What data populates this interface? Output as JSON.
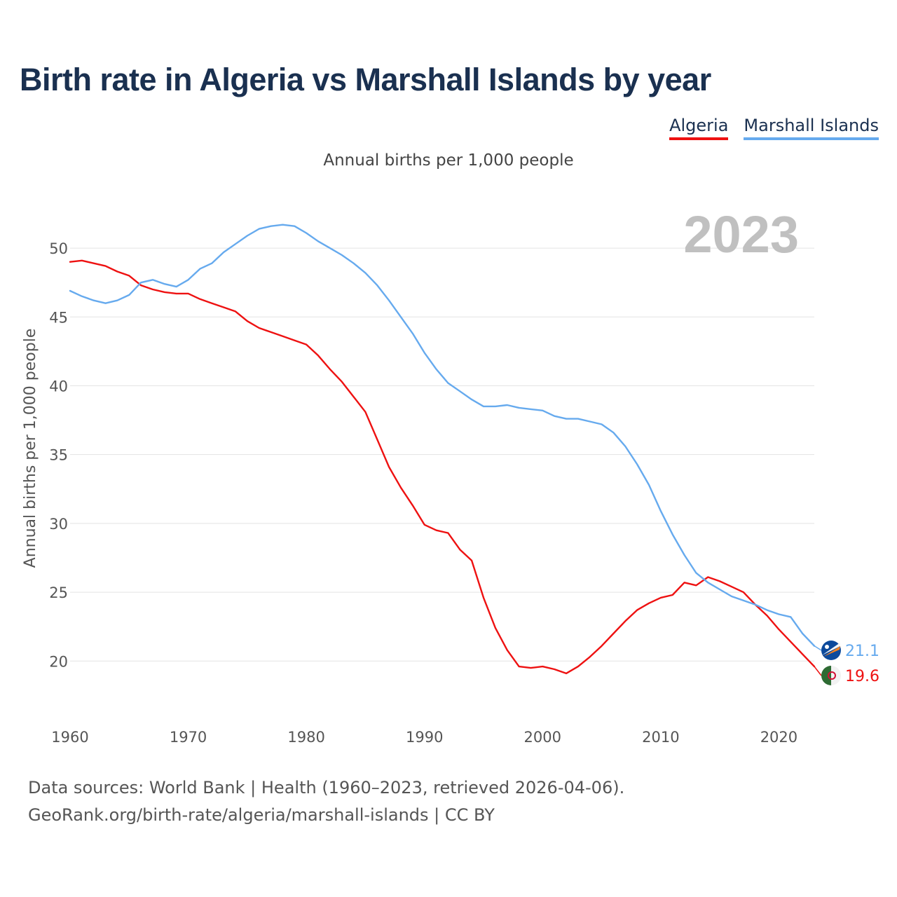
{
  "page": {
    "title": "Birth rate in Algeria vs Marshall Islands by year",
    "subtitle": "Annual births per 1,000 people",
    "source_line1": "Data sources: World Bank | Health (1960–2023, retrieved 2026-04-06).",
    "source_line2": "GeoRank.org/birth-rate/algeria/marshall-islands | CC BY"
  },
  "chart_data": {
    "type": "line",
    "title": "Birth rate in Algeria vs Marshall Islands by year",
    "subtitle": "Annual births per 1,000 people",
    "xlabel": "",
    "ylabel": "Annual births per 1,000 people",
    "year_label": "2023",
    "xlim": [
      1960,
      2023
    ],
    "ylim": [
      16.5,
      52.5
    ],
    "x_ticks": [
      1960,
      1970,
      1980,
      1990,
      2000,
      2010,
      2020
    ],
    "y_ticks": [
      20,
      25,
      30,
      35,
      40,
      45,
      50
    ],
    "grid": true,
    "legend_position": "top-right",
    "x": [
      1960,
      1961,
      1962,
      1963,
      1964,
      1965,
      1966,
      1967,
      1968,
      1969,
      1970,
      1971,
      1972,
      1973,
      1974,
      1975,
      1976,
      1977,
      1978,
      1979,
      1980,
      1981,
      1982,
      1983,
      1984,
      1985,
      1986,
      1987,
      1988,
      1989,
      1990,
      1991,
      1992,
      1993,
      1994,
      1995,
      1996,
      1997,
      1998,
      1999,
      2000,
      2001,
      2002,
      2003,
      2004,
      2005,
      2006,
      2007,
      2008,
      2009,
      2010,
      2011,
      2012,
      2013,
      2014,
      2015,
      2016,
      2017,
      2018,
      2019,
      2020,
      2021,
      2022,
      2023
    ],
    "series": [
      {
        "name": "Algeria",
        "color": "#ee1111",
        "end_label": "19.6",
        "values": [
          49.0,
          49.1,
          48.9,
          48.7,
          48.3,
          48.0,
          47.3,
          47.0,
          46.8,
          46.7,
          46.7,
          46.3,
          46.0,
          45.7,
          45.4,
          44.7,
          44.2,
          43.9,
          43.6,
          43.3,
          43.0,
          42.2,
          41.2,
          40.3,
          39.2,
          38.1,
          36.1,
          34.1,
          32.6,
          31.3,
          29.9,
          29.5,
          29.3,
          28.1,
          27.3,
          24.6,
          22.4,
          20.8,
          19.6,
          19.5,
          19.6,
          19.4,
          19.1,
          19.6,
          20.3,
          21.1,
          22.0,
          22.9,
          23.7,
          24.2,
          24.6,
          24.8,
          25.7,
          25.5,
          26.1,
          25.8,
          25.4,
          25.0,
          24.1,
          23.3,
          22.3,
          21.4,
          20.5,
          19.6
        ]
      },
      {
        "name": "Marshall Islands",
        "color": "#66aaee",
        "end_label": "21.1",
        "values": [
          46.9,
          46.5,
          46.2,
          46.0,
          46.2,
          46.6,
          47.5,
          47.7,
          47.4,
          47.2,
          47.7,
          48.5,
          48.9,
          49.7,
          50.3,
          50.9,
          51.4,
          51.6,
          51.7,
          51.6,
          51.1,
          50.5,
          50.0,
          49.5,
          48.9,
          48.2,
          47.3,
          46.2,
          45.0,
          43.8,
          42.4,
          41.2,
          40.2,
          39.6,
          39.0,
          38.5,
          38.5,
          38.6,
          38.4,
          38.3,
          38.2,
          37.8,
          37.6,
          37.6,
          37.4,
          37.2,
          36.6,
          35.6,
          34.3,
          32.8,
          30.9,
          29.2,
          27.7,
          26.4,
          25.7,
          25.2,
          24.7,
          24.4,
          24.1,
          23.7,
          23.4,
          23.2,
          22.0,
          21.1
        ]
      }
    ]
  }
}
